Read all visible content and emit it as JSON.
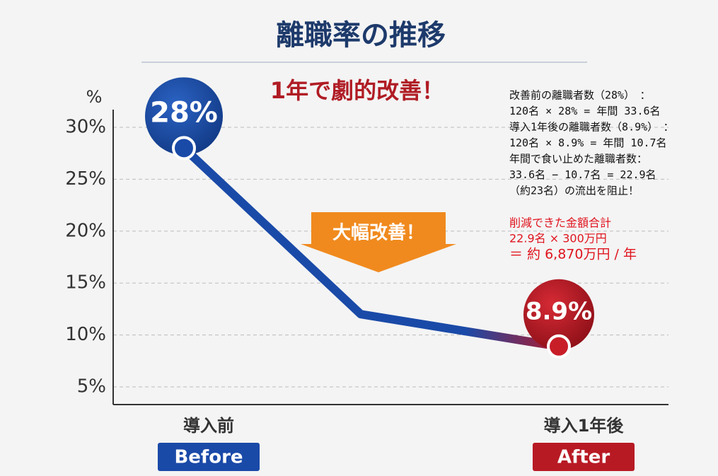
{
  "chart_data": {
    "type": "line",
    "title": "離職率の推移",
    "subtitle": "1年で劇的改善！",
    "y_label": "%",
    "categories": [
      "導入前",
      null,
      "導入1年後"
    ],
    "category_badges": [
      "Before",
      null,
      "After"
    ],
    "series": [
      {
        "name": "離職率",
        "color": "#1a4aa8",
        "values": [
          28,
          12,
          8.9
        ],
        "value_labels": [
          "28%",
          null,
          "8.9%"
        ]
      }
    ],
    "ylim": [
      3.3,
      31.7
    ],
    "yticks": [
      {
        "value": 5,
        "label": "5%"
      },
      {
        "value": 10,
        "label": "10%"
      },
      {
        "value": 15,
        "label": "15%"
      },
      {
        "value": 20,
        "label": "20%"
      },
      {
        "value": 25,
        "label": "25%"
      },
      {
        "value": 30,
        "label": "30%"
      }
    ],
    "grid": true,
    "annotation": "大幅改善！",
    "notes": [
      "改善前の離職者数（28%）　：",
      "120名 × 28% = 年間 33.6名",
      "導入1年後の離職者数（8.9%）　：",
      "120名 × 8.9% = 年間 10.7名",
      "年間で食い止めた離職者数：",
      "33.6名 − 10.7名 = 22.9名",
      "（約23名）の流出を阻止！"
    ],
    "savings": [
      "削減できた金額合計",
      "22.9名 × 300万円",
      "＝ 約 6,870万円 / 年"
    ]
  }
}
